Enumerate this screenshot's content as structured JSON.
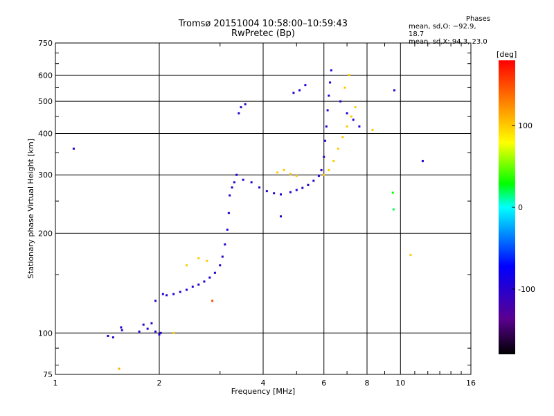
{
  "chart_data": {
    "type": "scatter",
    "title": "Tromsø 20151004 10:58:00–10:59:43",
    "subtitle": "RwPretec (Bp)",
    "xlabel": "Frequency [MHz]",
    "ylabel": "Stationary phase Virtual Height [km]",
    "xscale": "log",
    "yscale": "log",
    "xlim": [
      1,
      16
    ],
    "ylim": [
      75,
      750
    ],
    "x_ticks": [
      1,
      2,
      4,
      6,
      8,
      10,
      16
    ],
    "y_ticks": [
      75,
      100,
      200,
      300,
      400,
      500,
      600,
      750
    ],
    "grid": true,
    "phase_stats": {
      "header": "Phases",
      "line_o": "mean, sd,O: −92.9, 18.7",
      "line_x": "mean, sd,X:  94.3, 23.0"
    },
    "colorbar": {
      "label": "[deg]",
      "range": [
        -180,
        180
      ],
      "ticks": [
        100,
        0,
        -100
      ]
    },
    "series": [
      {
        "points": [
          [
            1.42,
            98,
            -100
          ],
          [
            1.47,
            97,
            -100
          ],
          [
            1.55,
            104,
            -100
          ],
          [
            1.56,
            102,
            -100
          ],
          [
            1.75,
            101,
            -100
          ],
          [
            1.8,
            106,
            -100
          ],
          [
            1.85,
            103,
            -100
          ],
          [
            1.9,
            107,
            -100
          ],
          [
            1.95,
            101,
            -100
          ],
          [
            2.0,
            99,
            -100
          ],
          [
            2.02,
            100,
            -100
          ],
          [
            1.95,
            125,
            -100
          ],
          [
            2.05,
            131,
            -100
          ],
          [
            2.1,
            130,
            -100
          ],
          [
            2.2,
            131,
            -100
          ],
          [
            2.3,
            133,
            -100
          ],
          [
            2.4,
            135,
            -100
          ],
          [
            2.5,
            138,
            -100
          ],
          [
            2.6,
            140,
            -100
          ],
          [
            2.7,
            143,
            -100
          ],
          [
            2.8,
            147,
            -100
          ],
          [
            2.9,
            152,
            -100
          ],
          [
            3.0,
            160,
            -100
          ],
          [
            3.05,
            170,
            -100
          ],
          [
            3.1,
            185,
            -100
          ],
          [
            3.15,
            205,
            -100
          ],
          [
            3.18,
            230,
            -100
          ],
          [
            3.2,
            260,
            -100
          ],
          [
            3.25,
            275,
            -100
          ],
          [
            3.3,
            285,
            -100
          ],
          [
            3.35,
            300,
            -100
          ],
          [
            3.5,
            290,
            -100
          ],
          [
            3.7,
            285,
            -100
          ],
          [
            3.9,
            275,
            -100
          ],
          [
            4.1,
            268,
            -100
          ],
          [
            4.3,
            264,
            -100
          ],
          [
            4.5,
            262,
            -100
          ],
          [
            4.8,
            266,
            -100
          ],
          [
            5.0,
            270,
            -100
          ],
          [
            5.2,
            274,
            -100
          ],
          [
            5.4,
            280,
            -100
          ],
          [
            5.6,
            288,
            -100
          ],
          [
            5.8,
            298,
            -100
          ],
          [
            5.9,
            310,
            -100
          ],
          [
            6.0,
            340,
            -100
          ],
          [
            6.05,
            380,
            -100
          ],
          [
            6.1,
            420,
            -100
          ],
          [
            6.15,
            470,
            -100
          ],
          [
            6.2,
            520,
            -100
          ],
          [
            6.25,
            570,
            -100
          ],
          [
            6.3,
            620,
            -100
          ],
          [
            3.4,
            460,
            -100
          ],
          [
            3.45,
            480,
            -100
          ],
          [
            3.55,
            490,
            -100
          ],
          [
            4.9,
            530,
            -100
          ],
          [
            5.1,
            540,
            -100
          ],
          [
            5.3,
            560,
            -100
          ],
          [
            6.7,
            500,
            -100
          ],
          [
            7.0,
            460,
            -100
          ],
          [
            7.3,
            440,
            -100
          ],
          [
            7.6,
            420,
            -100
          ],
          [
            1.13,
            360,
            -100
          ],
          [
            9.6,
            540,
            -100
          ],
          [
            11.6,
            330,
            -100
          ],
          [
            4.5,
            225,
            -100
          ],
          [
            2.4,
            160,
            100
          ],
          [
            2.6,
            168,
            100
          ],
          [
            2.75,
            165,
            100
          ],
          [
            2.2,
            100,
            100
          ],
          [
            4.4,
            305,
            100
          ],
          [
            4.6,
            310,
            100
          ],
          [
            4.8,
            302,
            100
          ],
          [
            5.0,
            298,
            100
          ],
          [
            6.0,
            300,
            100
          ],
          [
            6.2,
            310,
            100
          ],
          [
            6.4,
            330,
            100
          ],
          [
            6.6,
            360,
            100
          ],
          [
            6.8,
            390,
            100
          ],
          [
            7.0,
            420,
            100
          ],
          [
            7.2,
            450,
            100
          ],
          [
            7.4,
            480,
            100
          ],
          [
            6.9,
            550,
            100
          ],
          [
            7.1,
            600,
            100
          ],
          [
            8.3,
            410,
            100
          ],
          [
            9.5,
            265,
            30
          ],
          [
            9.55,
            236,
            20
          ],
          [
            10.7,
            172,
            100
          ],
          [
            2.85,
            125,
            150
          ],
          [
            1.53,
            78,
            110
          ]
        ]
      }
    ]
  }
}
